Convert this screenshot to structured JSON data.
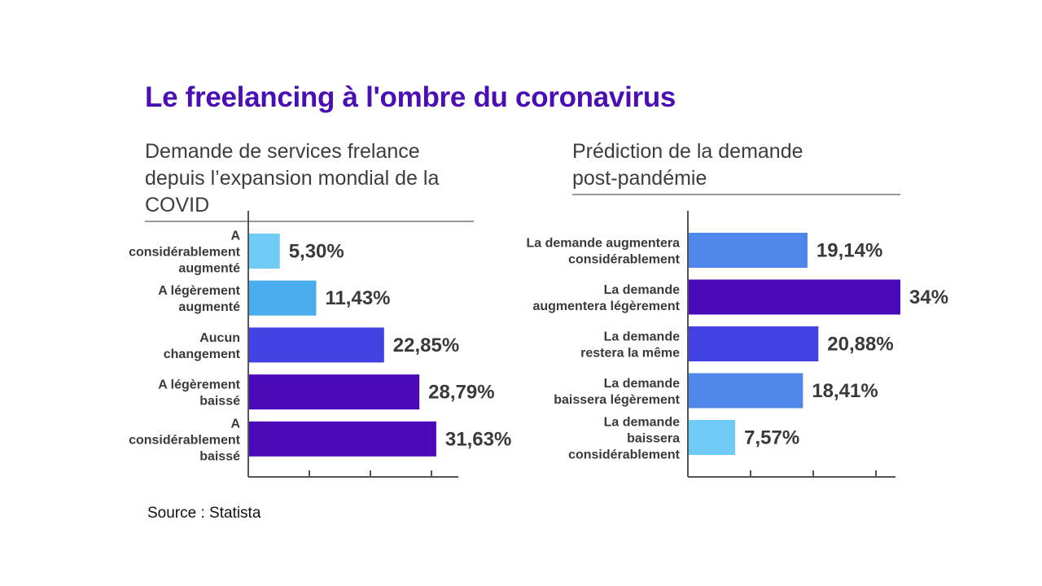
{
  "title": "Le freelancing à l'ombre du coronavirus",
  "source": "Source : Statista",
  "chart_data": [
    {
      "type": "bar",
      "orientation": "horizontal",
      "title": "Demande de services frelance\ndepuis l’expansion mondial de la COVID",
      "categories": [
        "A considérablement augmenté",
        "A légèrement augmenté",
        "Aucun changement",
        "A légèrement baissé",
        "A considérablement baissé"
      ],
      "values": [
        5.3,
        11.43,
        22.85,
        28.79,
        31.63
      ],
      "value_labels": [
        "5,30%",
        "11,43%",
        "22,85%",
        "28,79%",
        "31,63%"
      ],
      "colors": [
        "#6fcaf8",
        "#4aaeee",
        "#4242e2",
        "#4b0ab7",
        "#4b0ab7"
      ],
      "xlim": [
        0,
        40
      ],
      "grid": false
    },
    {
      "type": "bar",
      "orientation": "horizontal",
      "title": "Prédiction de la demande\npost-pandémie",
      "categories": [
        "La demande augmentera considérablement",
        "La demande augmentera légèrement",
        "La demande restera la même",
        "La demande baissera légèrement",
        "La demande baissera considérablement"
      ],
      "values": [
        19.14,
        34,
        20.88,
        18.41,
        7.57
      ],
      "value_labels": [
        "19,14%",
        "34%",
        "20,88%",
        "18,41%",
        "7,57%"
      ],
      "colors": [
        "#4f86ea",
        "#4b0ab7",
        "#4242e2",
        "#4f86ea",
        "#6fcaf8"
      ],
      "xlim": [
        0,
        34
      ],
      "grid": false
    }
  ]
}
